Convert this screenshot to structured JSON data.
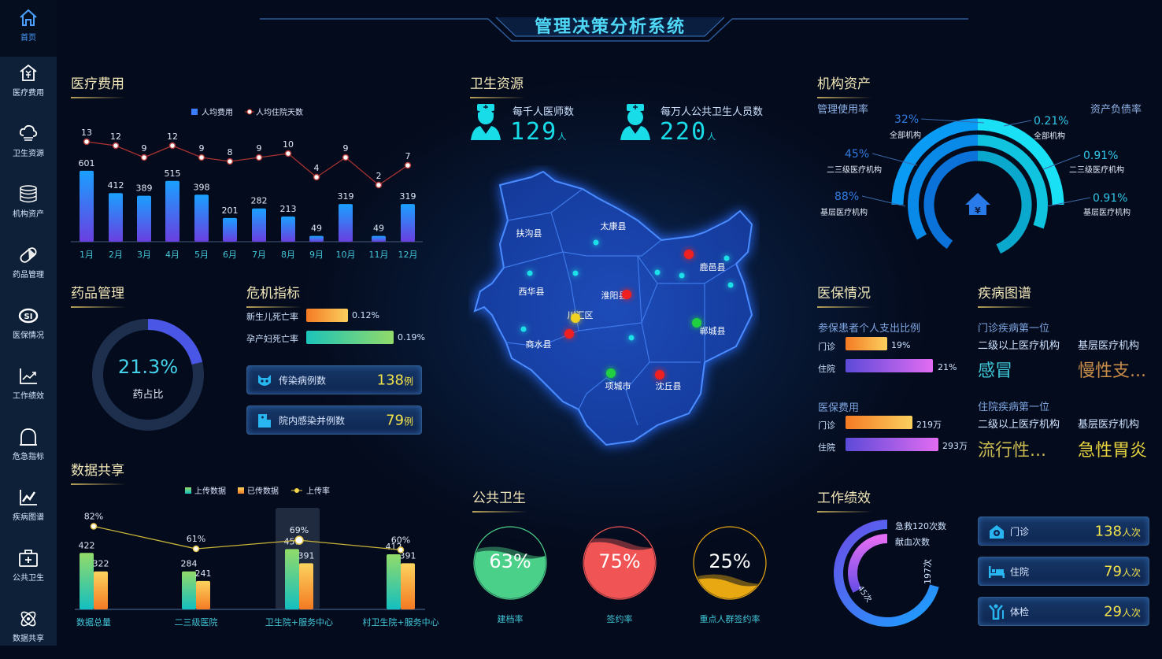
{
  "header": {
    "title": "管理决策分析系统"
  },
  "sidebar": {
    "items": [
      {
        "label": "首页",
        "icon": "home-icon"
      },
      {
        "label": "医疗费用",
        "icon": "medical-cost-icon"
      },
      {
        "label": "卫生资源",
        "icon": "cloud-icon"
      },
      {
        "label": "机构资产",
        "icon": "coins-icon"
      },
      {
        "label": "药品管理",
        "icon": "pill-icon"
      },
      {
        "label": "医保情况",
        "icon": "si-icon"
      },
      {
        "label": "工作绩效",
        "icon": "trend-chart-icon"
      },
      {
        "label": "危急指标",
        "icon": "alarm-icon"
      },
      {
        "label": "疾病图谱",
        "icon": "line-chart-icon"
      },
      {
        "label": "公共卫生",
        "icon": "medical-kit-icon"
      },
      {
        "label": "数据共享",
        "icon": "atom-icon"
      }
    ]
  },
  "medical_cost": {
    "title": "医疗费用",
    "chart_data": {
      "type": "bar+line",
      "categories": [
        "1月",
        "2月",
        "3月",
        "4月",
        "5月",
        "6月",
        "7月",
        "8月",
        "9月",
        "10月",
        "11月",
        "12月"
      ],
      "series": [
        {
          "name": "人均费用",
          "type": "bar",
          "values": [
            601,
            412,
            389,
            515,
            398,
            201,
            282,
            213,
            49,
            319,
            49,
            319
          ]
        },
        {
          "name": "人均住院天数",
          "type": "line",
          "values": [
            13,
            12,
            9,
            12,
            9,
            8,
            9,
            10,
            4,
            9,
            2,
            7
          ]
        }
      ],
      "legend": "top-center",
      "grid": false
    }
  },
  "drug": {
    "title": "药品管理",
    "value": "21.3%",
    "label": "药占比",
    "percent": 21.3
  },
  "crisis": {
    "title": "危机指标",
    "bars": [
      {
        "label": "新生儿死亡率",
        "value": "0.12%"
      },
      {
        "label": "孕产妇死亡率",
        "value": "0.19%"
      }
    ],
    "cards": [
      {
        "label": "传染病例数",
        "value": "138",
        "unit": "例"
      },
      {
        "label": "院内感染并例数",
        "value": "79",
        "unit": "例"
      }
    ]
  },
  "share": {
    "title": "数据共享",
    "chart_data": {
      "type": "bar+line",
      "categories": [
        "数据总量",
        "二三级医院",
        "卫生院+服务中心",
        "村卫生院+服务中心"
      ],
      "series": [
        {
          "name": "上传数据",
          "type": "bar",
          "values": [
            422,
            284,
            451,
            412
          ]
        },
        {
          "name": "已传数据",
          "type": "bar",
          "values": [
            322,
            241,
            391,
            391
          ]
        },
        {
          "name": "上传率",
          "type": "line",
          "values": [
            82,
            61,
            69,
            60
          ],
          "unit": "%"
        }
      ],
      "highlighted": "卫生院+服务中心",
      "legend": "top-center"
    }
  },
  "resources": {
    "title": "卫生资源",
    "stats": [
      {
        "label": "每千人医师数",
        "value": "129",
        "unit": "人"
      },
      {
        "label": "每万人公共卫生人员数",
        "value": "220",
        "unit": "人"
      }
    ],
    "map": {
      "regions": [
        "扶沟县",
        "太康县",
        "西华县",
        "淮阳县",
        "川汇区",
        "鹿邑县",
        "商水县",
        "郸城县",
        "项城市",
        "沈丘县"
      ]
    }
  },
  "public_health": {
    "title": "公共卫生",
    "gauges": [
      {
        "label": "建档率",
        "value": "63%",
        "percent": 63,
        "color": "#4bd08a"
      },
      {
        "label": "签约率",
        "value": "75%",
        "percent": 75,
        "color": "#f05454"
      },
      {
        "label": "重点人群签约率",
        "value": "25%",
        "percent": 25,
        "color": "#e8a812"
      }
    ]
  },
  "assets": {
    "title": "机构资产",
    "left_title": "管理使用率",
    "right_title": "资产负债率",
    "left": [
      {
        "value": "32%",
        "label": "全部机构"
      },
      {
        "value": "45%",
        "label": "二三级医疗机构"
      },
      {
        "value": "88%",
        "label": "基层医疗机构"
      }
    ],
    "right": [
      {
        "value": "0.21%",
        "label": "全部机构"
      },
      {
        "value": "0.91%",
        "label": "二三级医疗机构"
      },
      {
        "value": "0.91%",
        "label": "基层医疗机构"
      }
    ]
  },
  "insurance": {
    "title": "医保情况",
    "ratio": {
      "title": "参保患者个人支出比例",
      "rows": [
        {
          "label": "门诊",
          "value": "19%"
        },
        {
          "label": "住院",
          "value": "21%"
        }
      ]
    },
    "cost": {
      "title": "医保费用",
      "rows": [
        {
          "label": "门诊",
          "value": "219万"
        },
        {
          "label": "住院",
          "value": "293万"
        }
      ]
    }
  },
  "disease": {
    "title": "疾病图谱",
    "outpatient": {
      "title": "门诊疾病第一位",
      "cols": [
        {
          "label": "二级以上医疗机构",
          "value": "感冒"
        },
        {
          "label": "基层医疗机构",
          "value": "慢性支..."
        }
      ]
    },
    "inpatient": {
      "title": "住院疾病第一位",
      "cols": [
        {
          "label": "二级以上医疗机构",
          "value": "流行性..."
        },
        {
          "label": "基层医疗机构",
          "value": "急性胃炎"
        }
      ]
    }
  },
  "performance": {
    "title": "工作绩效",
    "rings": [
      {
        "label": "急救120次数",
        "value": "197次",
        "count": 197
      },
      {
        "label": "献血次数",
        "value": "45次",
        "count": 45
      }
    ],
    "cards": [
      {
        "label": "门诊",
        "value": "138",
        "unit": "人次",
        "icon": "clinic-icon"
      },
      {
        "label": "住院",
        "value": "79",
        "unit": "人次",
        "icon": "bed-icon"
      },
      {
        "label": "体检",
        "value": "29",
        "unit": "人次",
        "icon": "checkup-icon"
      }
    ]
  }
}
